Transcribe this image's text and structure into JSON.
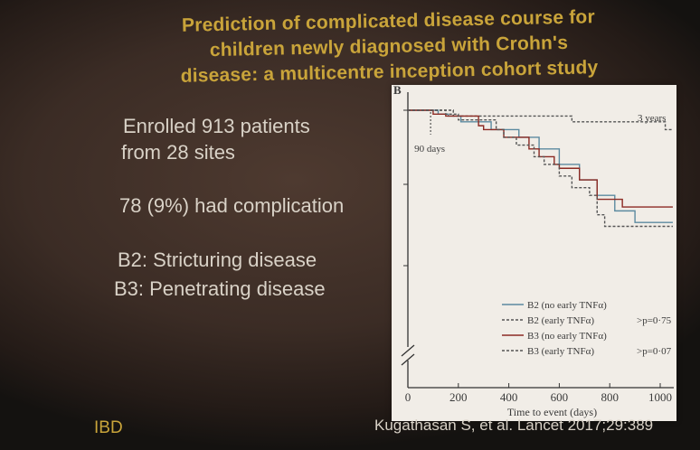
{
  "slide": {
    "title_lines": [
      "Prediction of complicated disease course for",
      "children newly diagnosed with Crohn's",
      "disease: a multicentre inception cohort study"
    ],
    "enrolled_line1": "Enrolled 913 patients",
    "enrolled_line2": "from 28 sites",
    "complication": "78 (9%) had complication",
    "b2": "B2: Stricturing disease",
    "b3": "B3: Penetrating disease",
    "footer_left": "IBD",
    "citation": "Kugathasan S, et al. Lancet 2017;29:389"
  },
  "colors": {
    "title": "#c9a43a",
    "text": "#d9d2c7",
    "b2_no_early": "#5c8aa0",
    "b2_early": "#555555",
    "b3_no_early": "#8c2a23",
    "b3_early": "#555555"
  },
  "chart_data": {
    "type": "line",
    "panel_label": "B",
    "xlabel": "Time to event (days)",
    "ylabel": "",
    "xlim": [
      0,
      1050
    ],
    "x_ticks": [
      0,
      200,
      400,
      600,
      800,
      1000
    ],
    "x_tick_labels": [
      "0",
      "200",
      "400",
      "600",
      "800",
      "1000"
    ],
    "annotations": {
      "day90": "90 days",
      "year3": "3 years"
    },
    "pvalues": {
      "b2": ">p=0·75",
      "b3": ">p=0·07"
    },
    "series": [
      {
        "name": "B2 (no early TNFα)",
        "style": "solid",
        "color": "#5c8aa0",
        "steps": [
          [
            0,
            1.0
          ],
          [
            120,
            0.99
          ],
          [
            160,
            0.985
          ],
          [
            210,
            0.97
          ],
          [
            330,
            0.95
          ],
          [
            440,
            0.93
          ],
          [
            520,
            0.9
          ],
          [
            600,
            0.86
          ],
          [
            680,
            0.82
          ],
          [
            750,
            0.78
          ],
          [
            820,
            0.74
          ],
          [
            900,
            0.71
          ],
          [
            1050,
            0.71
          ]
        ]
      },
      {
        "name": "B2 (early TNFα)",
        "style": "dashed",
        "color": "#555555",
        "steps": [
          [
            0,
            1.0
          ],
          [
            180,
            0.985
          ],
          [
            650,
            0.97
          ],
          [
            1020,
            0.95
          ],
          [
            1050,
            0.95
          ]
        ]
      },
      {
        "name": "B3 (no early TNFα)",
        "style": "solid",
        "color": "#8c2a23",
        "steps": [
          [
            0,
            1.0
          ],
          [
            100,
            0.99
          ],
          [
            150,
            0.985
          ],
          [
            280,
            0.96
          ],
          [
            300,
            0.95
          ],
          [
            380,
            0.93
          ],
          [
            480,
            0.9
          ],
          [
            520,
            0.88
          ],
          [
            580,
            0.86
          ],
          [
            600,
            0.85
          ],
          [
            680,
            0.82
          ],
          [
            750,
            0.77
          ],
          [
            850,
            0.75
          ],
          [
            1050,
            0.75
          ]
        ]
      },
      {
        "name": "B3 (early TNFα)",
        "style": "dashed",
        "color": "#555555",
        "steps": [
          [
            0,
            1.0
          ],
          [
            150,
            0.99
          ],
          [
            200,
            0.975
          ],
          [
            350,
            0.95
          ],
          [
            380,
            0.93
          ],
          [
            430,
            0.91
          ],
          [
            500,
            0.88
          ],
          [
            540,
            0.86
          ],
          [
            600,
            0.83
          ],
          [
            650,
            0.8
          ],
          [
            720,
            0.78
          ],
          [
            750,
            0.73
          ],
          [
            780,
            0.7
          ],
          [
            1050,
            0.7
          ]
        ]
      }
    ],
    "legend": [
      "B2 (no early TNFα)",
      "B2 (early TNFα)",
      "B3 (no early TNFα)",
      "B3 (early TNFα)"
    ]
  }
}
